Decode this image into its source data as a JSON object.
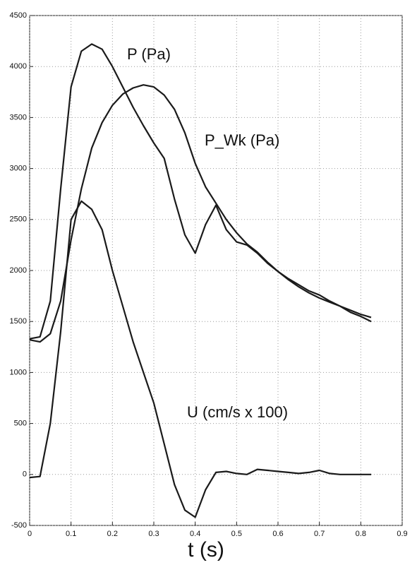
{
  "chart_data": {
    "type": "line",
    "x": [
      0,
      0.025,
      0.05,
      0.075,
      0.1,
      0.125,
      0.15,
      0.175,
      0.2,
      0.225,
      0.25,
      0.275,
      0.3,
      0.325,
      0.35,
      0.375,
      0.4,
      0.425,
      0.45,
      0.475,
      0.5,
      0.525,
      0.55,
      0.575,
      0.6,
      0.625,
      0.65,
      0.675,
      0.7,
      0.725,
      0.75,
      0.775,
      0.8,
      0.825
    ],
    "series": [
      {
        "name": "P (Pa)",
        "color": "#1a1a1a",
        "values": [
          1330,
          1350,
          1700,
          2800,
          3800,
          4150,
          4220,
          4170,
          4000,
          3800,
          3600,
          3420,
          3250,
          3100,
          2700,
          2350,
          2170,
          2450,
          2640,
          2400,
          2280,
          2250,
          2170,
          2070,
          1990,
          1920,
          1860,
          1800,
          1760,
          1700,
          1650,
          1590,
          1550,
          1500
        ]
      },
      {
        "name": "P_Wk (Pa)",
        "color": "#1a1a1a",
        "values": [
          1320,
          1300,
          1380,
          1700,
          2300,
          2800,
          3200,
          3450,
          3620,
          3730,
          3790,
          3820,
          3800,
          3720,
          3580,
          3350,
          3050,
          2820,
          2660,
          2500,
          2370,
          2260,
          2180,
          2080,
          1990,
          1910,
          1840,
          1780,
          1730,
          1690,
          1650,
          1610,
          1570,
          1540
        ]
      },
      {
        "name": "U (cm/s x 100)",
        "color": "#1a1a1a",
        "values": [
          -30,
          -20,
          500,
          1400,
          2500,
          2680,
          2600,
          2400,
          2000,
          1650,
          1300,
          1000,
          700,
          300,
          -100,
          -350,
          -420,
          -150,
          20,
          30,
          10,
          0,
          50,
          40,
          30,
          20,
          10,
          20,
          40,
          10,
          0,
          0,
          0,
          0
        ]
      }
    ],
    "x_label": "t (s)",
    "xlim": [
      0,
      0.9
    ],
    "xticks": [
      0,
      0.1,
      0.2,
      0.3,
      0.4,
      0.5,
      0.6,
      0.7,
      0.8,
      0.9
    ],
    "ylim": [
      -500,
      4500
    ],
    "yticks": [
      -500,
      0,
      500,
      1000,
      1500,
      2000,
      2500,
      3000,
      3500,
      4000,
      4500
    ],
    "grid": true
  }
}
